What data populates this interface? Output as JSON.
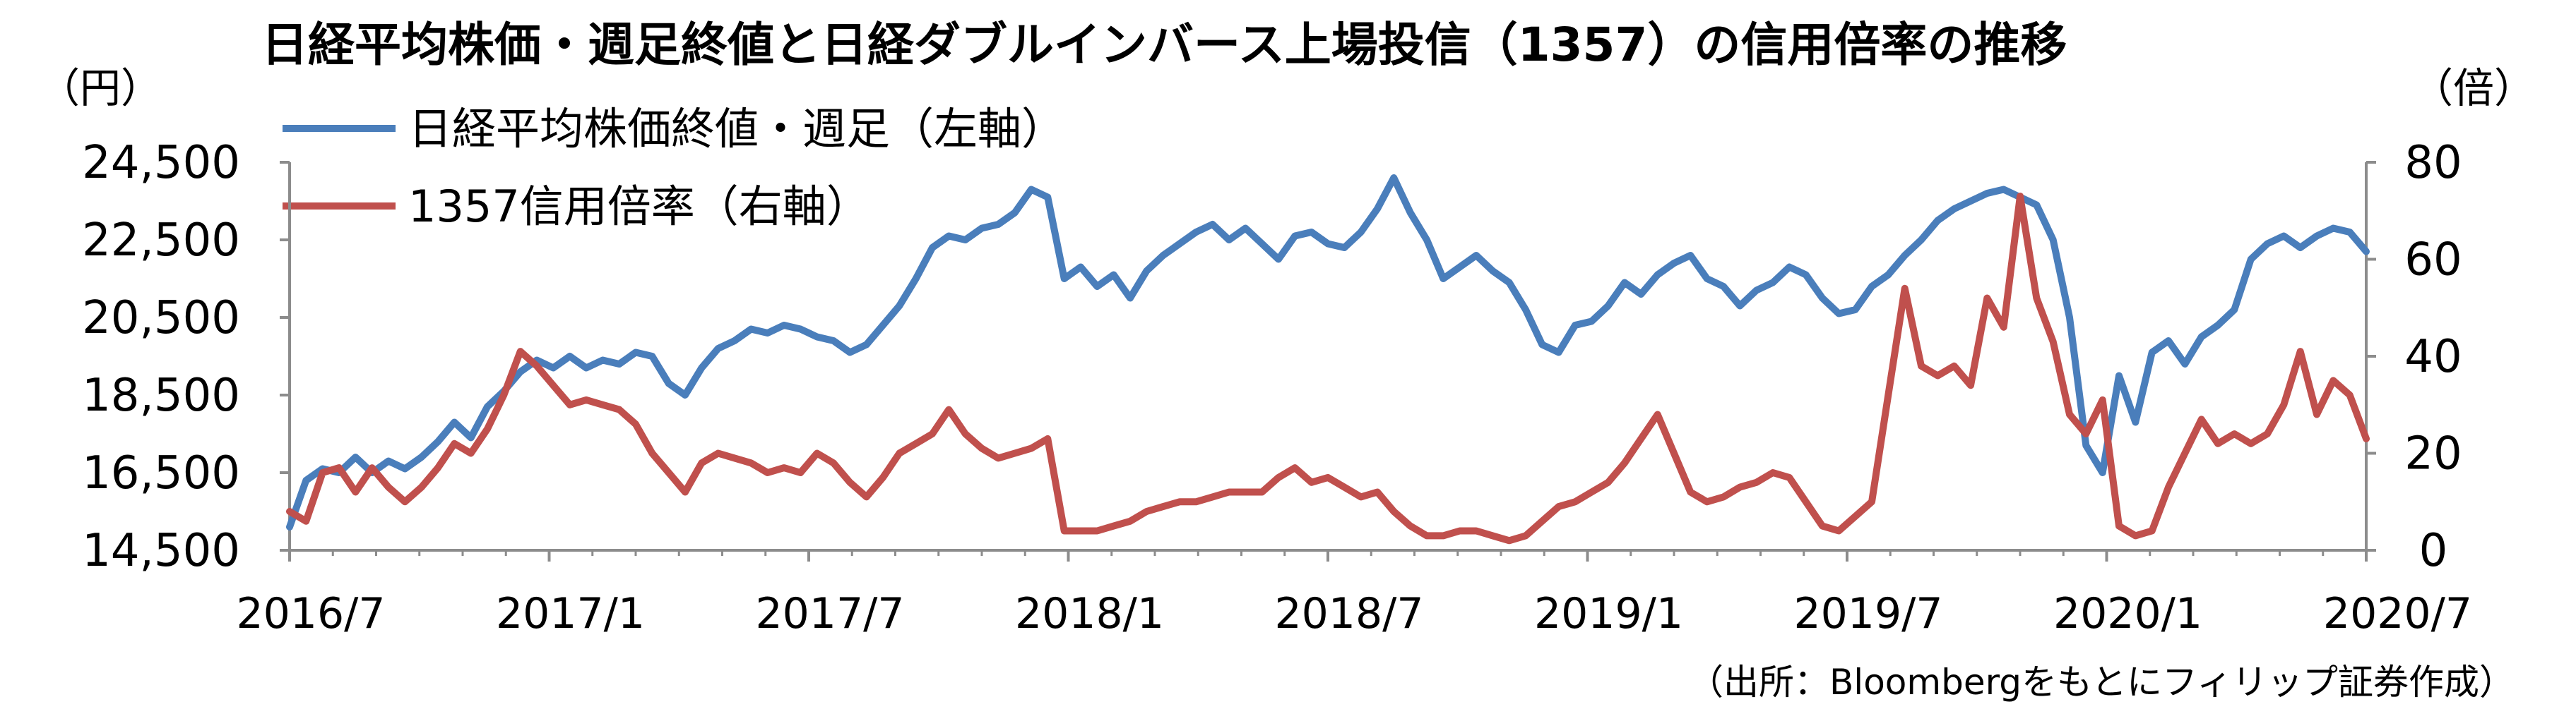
{
  "chart_data": {
    "type": "line",
    "title": "日経平均株価・週足終値と日経ダブルインバース上場投信（1357）の信用倍率の推移",
    "source": "（出所：Bloombergをもとにフィリップ証券作成）",
    "left_axis": {
      "unit": "（円）",
      "ticks": [
        "24,500",
        "22,500",
        "20,500",
        "18,500",
        "16,500",
        "14,500"
      ],
      "range": [
        14500,
        24500
      ]
    },
    "right_axis": {
      "unit": "（倍）",
      "ticks": [
        "80",
        "60",
        "40",
        "20",
        "0"
      ],
      "range": [
        0,
        80
      ]
    },
    "x_ticks": [
      "2016/7",
      "2017/1",
      "2017/7",
      "2018/1",
      "2018/7",
      "2019/1",
      "2019/7",
      "2020/1",
      "2020/7"
    ],
    "x_range": [
      "2016/7",
      "2020/7"
    ],
    "grid": false,
    "legend_position": "top-left",
    "series": [
      {
        "name": "日経平均株価終値・週足（左軸）",
        "axis": "left",
        "color": "#4a7ebb",
        "values": [
          [
            0.0,
            15100
          ],
          [
            0.5,
            16300
          ],
          [
            1.0,
            16600
          ],
          [
            1.5,
            16500
          ],
          [
            2.0,
            16900
          ],
          [
            2.5,
            16500
          ],
          [
            3.0,
            16800
          ],
          [
            3.5,
            16600
          ],
          [
            4.0,
            16900
          ],
          [
            4.5,
            17300
          ],
          [
            5.0,
            17800
          ],
          [
            5.5,
            17400
          ],
          [
            6.0,
            18200
          ],
          [
            6.5,
            18600
          ],
          [
            7.0,
            19100
          ],
          [
            7.5,
            19400
          ],
          [
            8.0,
            19200
          ],
          [
            8.5,
            19500
          ],
          [
            9.0,
            19200
          ],
          [
            9.5,
            19400
          ],
          [
            10.0,
            19300
          ],
          [
            10.5,
            19600
          ],
          [
            11.0,
            19500
          ],
          [
            11.5,
            18800
          ],
          [
            12.0,
            18500
          ],
          [
            12.5,
            19200
          ],
          [
            13.0,
            19700
          ],
          [
            13.5,
            19900
          ],
          [
            14.0,
            20200
          ],
          [
            14.5,
            20100
          ],
          [
            15.0,
            20300
          ],
          [
            15.5,
            20200
          ],
          [
            16.0,
            20000
          ],
          [
            16.5,
            19900
          ],
          [
            17.0,
            19600
          ],
          [
            17.5,
            19800
          ],
          [
            18.0,
            20300
          ],
          [
            18.5,
            20800
          ],
          [
            19.0,
            21500
          ],
          [
            19.5,
            22300
          ],
          [
            20.0,
            22600
          ],
          [
            20.5,
            22500
          ],
          [
            21.0,
            22800
          ],
          [
            21.5,
            22900
          ],
          [
            22.0,
            23200
          ],
          [
            22.5,
            23800
          ],
          [
            23.0,
            23600
          ],
          [
            23.5,
            21500
          ],
          [
            24.0,
            21800
          ],
          [
            24.5,
            21300
          ],
          [
            25.0,
            21600
          ],
          [
            25.5,
            21000
          ],
          [
            26.0,
            21700
          ],
          [
            26.5,
            22100
          ],
          [
            27.0,
            22400
          ],
          [
            27.5,
            22700
          ],
          [
            28.0,
            22900
          ],
          [
            28.5,
            22500
          ],
          [
            29.0,
            22800
          ],
          [
            29.5,
            22400
          ],
          [
            30.0,
            22000
          ],
          [
            30.5,
            22600
          ],
          [
            31.0,
            22700
          ],
          [
            31.5,
            22400
          ],
          [
            32.0,
            22300
          ],
          [
            32.5,
            22700
          ],
          [
            33.0,
            23300
          ],
          [
            33.5,
            24100
          ],
          [
            34.0,
            23200
          ],
          [
            34.5,
            22500
          ],
          [
            35.0,
            21500
          ],
          [
            35.5,
            21800
          ],
          [
            36.0,
            22100
          ],
          [
            36.5,
            21700
          ],
          [
            37.0,
            21400
          ],
          [
            37.5,
            20700
          ],
          [
            38.0,
            19800
          ],
          [
            38.5,
            19600
          ],
          [
            39.0,
            20300
          ],
          [
            39.5,
            20400
          ],
          [
            40.0,
            20800
          ],
          [
            40.5,
            21400
          ],
          [
            41.0,
            21100
          ],
          [
            41.5,
            21600
          ],
          [
            42.0,
            21900
          ],
          [
            42.5,
            22100
          ],
          [
            43.0,
            21500
          ],
          [
            43.5,
            21300
          ],
          [
            44.0,
            20800
          ],
          [
            44.5,
            21200
          ],
          [
            45.0,
            21400
          ],
          [
            45.5,
            21800
          ],
          [
            46.0,
            21600
          ],
          [
            46.5,
            21000
          ],
          [
            47.0,
            20600
          ],
          [
            47.5,
            20700
          ],
          [
            48.0,
            21300
          ],
          [
            48.5,
            21600
          ],
          [
            49.0,
            22100
          ],
          [
            49.5,
            22500
          ],
          [
            50.0,
            23000
          ],
          [
            50.5,
            23300
          ],
          [
            51.0,
            23500
          ],
          [
            51.5,
            23700
          ],
          [
            52.0,
            23800
          ],
          [
            52.5,
            23600
          ],
          [
            53.0,
            23400
          ],
          [
            53.5,
            22500
          ],
          [
            54.0,
            20500
          ],
          [
            54.5,
            17200
          ],
          [
            55.0,
            16500
          ],
          [
            55.5,
            19000
          ],
          [
            56.0,
            17800
          ],
          [
            56.5,
            19600
          ],
          [
            57.0,
            19900
          ],
          [
            57.5,
            19300
          ],
          [
            58.0,
            20000
          ],
          [
            58.5,
            20300
          ],
          [
            59.0,
            20700
          ],
          [
            59.5,
            22000
          ],
          [
            60.0,
            22400
          ],
          [
            60.5,
            22600
          ],
          [
            61.0,
            22300
          ],
          [
            61.5,
            22600
          ],
          [
            62.0,
            22800
          ],
          [
            62.5,
            22700
          ],
          [
            63.0,
            22200
          ]
        ]
      },
      {
        "name": "1357信用倍率（右軸）",
        "axis": "right",
        "color": "#c0504d",
        "values": [
          [
            0.0,
            8
          ],
          [
            0.5,
            6
          ],
          [
            1.0,
            16
          ],
          [
            1.5,
            17
          ],
          [
            2.0,
            12
          ],
          [
            2.5,
            17
          ],
          [
            3.0,
            13
          ],
          [
            3.5,
            10
          ],
          [
            4.0,
            13
          ],
          [
            4.5,
            17
          ],
          [
            5.0,
            22
          ],
          [
            5.5,
            20
          ],
          [
            6.0,
            25
          ],
          [
            6.5,
            32
          ],
          [
            7.0,
            41
          ],
          [
            7.5,
            38
          ],
          [
            8.0,
            34
          ],
          [
            8.5,
            30
          ],
          [
            9.0,
            31
          ],
          [
            9.5,
            30
          ],
          [
            10.0,
            29
          ],
          [
            10.5,
            26
          ],
          [
            11.0,
            20
          ],
          [
            11.5,
            16
          ],
          [
            12.0,
            12
          ],
          [
            12.5,
            18
          ],
          [
            13.0,
            20
          ],
          [
            13.5,
            19
          ],
          [
            14.0,
            18
          ],
          [
            14.5,
            16
          ],
          [
            15.0,
            17
          ],
          [
            15.5,
            16
          ],
          [
            16.0,
            20
          ],
          [
            16.5,
            18
          ],
          [
            17.0,
            14
          ],
          [
            17.5,
            11
          ],
          [
            18.0,
            15
          ],
          [
            18.5,
            20
          ],
          [
            19.0,
            22
          ],
          [
            19.5,
            24
          ],
          [
            20.0,
            29
          ],
          [
            20.5,
            24
          ],
          [
            21.0,
            21
          ],
          [
            21.5,
            19
          ],
          [
            22.0,
            20
          ],
          [
            22.5,
            21
          ],
          [
            23.0,
            23
          ],
          [
            23.5,
            4
          ],
          [
            24.0,
            4
          ],
          [
            24.5,
            4
          ],
          [
            25.0,
            5
          ],
          [
            25.5,
            6
          ],
          [
            26.0,
            8
          ],
          [
            26.5,
            9
          ],
          [
            27.0,
            10
          ],
          [
            27.5,
            10
          ],
          [
            28.0,
            11
          ],
          [
            28.5,
            12
          ],
          [
            29.0,
            12
          ],
          [
            29.5,
            12
          ],
          [
            30.0,
            15
          ],
          [
            30.5,
            17
          ],
          [
            31.0,
            14
          ],
          [
            31.5,
            15
          ],
          [
            32.0,
            13
          ],
          [
            32.5,
            11
          ],
          [
            33.0,
            12
          ],
          [
            33.5,
            8
          ],
          [
            34.0,
            5
          ],
          [
            34.5,
            3
          ],
          [
            35.0,
            3
          ],
          [
            35.5,
            4
          ],
          [
            36.0,
            4
          ],
          [
            36.5,
            3
          ],
          [
            37.0,
            2
          ],
          [
            37.5,
            3
          ],
          [
            38.0,
            6
          ],
          [
            38.5,
            9
          ],
          [
            39.0,
            10
          ],
          [
            39.5,
            12
          ],
          [
            40.0,
            14
          ],
          [
            40.5,
            18
          ],
          [
            41.0,
            23
          ],
          [
            41.5,
            28
          ],
          [
            42.0,
            20
          ],
          [
            42.5,
            12
          ],
          [
            43.0,
            10
          ],
          [
            43.5,
            11
          ],
          [
            44.0,
            13
          ],
          [
            44.5,
            14
          ],
          [
            45.0,
            16
          ],
          [
            45.5,
            15
          ],
          [
            46.0,
            10
          ],
          [
            46.5,
            5
          ],
          [
            47.0,
            4
          ],
          [
            47.5,
            7
          ],
          [
            48.0,
            10
          ],
          [
            48.5,
            32
          ],
          [
            49.0,
            54
          ],
          [
            49.5,
            38
          ],
          [
            50.0,
            36
          ],
          [
            50.5,
            38
          ],
          [
            51.0,
            34
          ],
          [
            51.5,
            52
          ],
          [
            52.0,
            46
          ],
          [
            52.5,
            73
          ],
          [
            53.0,
            52
          ],
          [
            53.5,
            43
          ],
          [
            54.0,
            28
          ],
          [
            54.5,
            24
          ],
          [
            55.0,
            31
          ],
          [
            55.5,
            5
          ],
          [
            56.0,
            3
          ],
          [
            56.5,
            4
          ],
          [
            57.0,
            13
          ],
          [
            57.5,
            20
          ],
          [
            58.0,
            27
          ],
          [
            58.5,
            22
          ],
          [
            59.0,
            24
          ],
          [
            59.5,
            22
          ],
          [
            60.0,
            24
          ],
          [
            60.5,
            30
          ],
          [
            61.0,
            41
          ],
          [
            61.5,
            28
          ],
          [
            62.0,
            35
          ],
          [
            62.5,
            32
          ],
          [
            63.0,
            23
          ]
        ]
      }
    ]
  }
}
